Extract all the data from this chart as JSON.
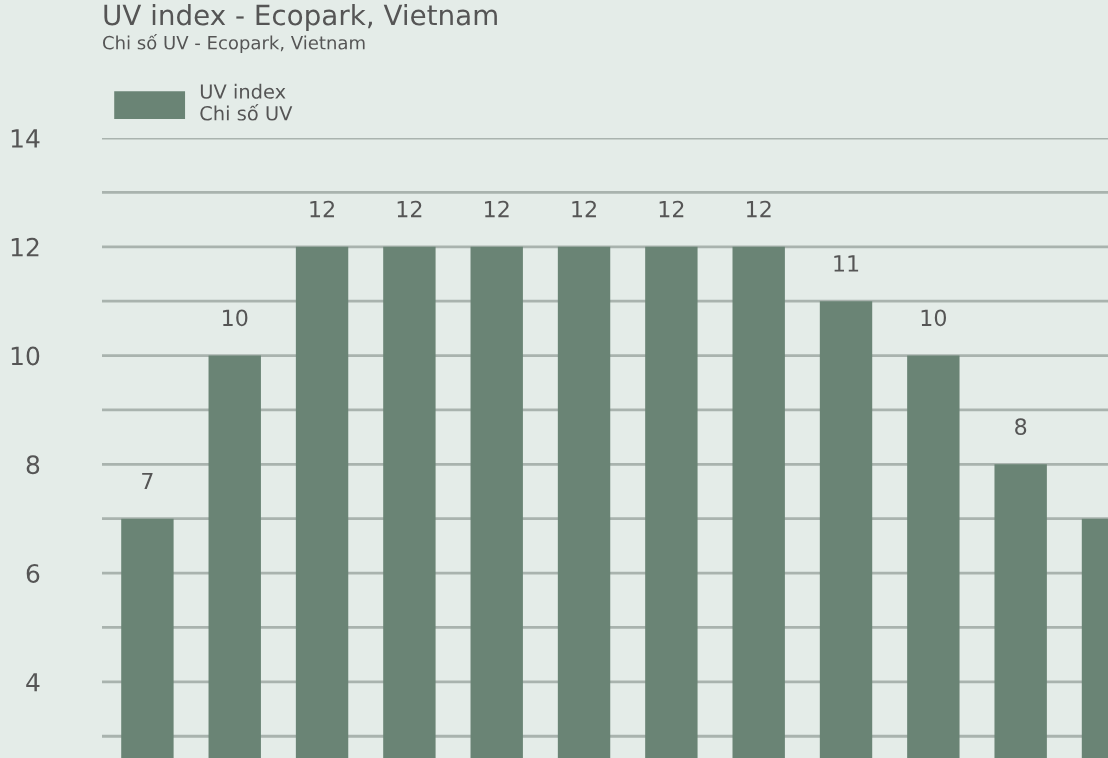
{
  "chart_data": {
    "type": "bar",
    "title": "UV index - Ecopark, Vietnam",
    "subtitle": "Chi số UV - Ecopark, Vietnam",
    "categories": [
      null,
      null,
      null,
      null,
      null,
      null,
      null,
      null,
      null,
      null,
      null,
      null
    ],
    "series": [
      {
        "name": "UV index\nChi số UV",
        "color": "#6a8475",
        "values": [
          7,
          10,
          12,
          12,
          12,
          12,
          12,
          12,
          11,
          10,
          8,
          7
        ]
      }
    ],
    "value_labels": [
      "7",
      "10",
      "12",
      "12",
      "12",
      "12",
      "12",
      "12",
      "11",
      "10",
      "8",
      null
    ],
    "ylim": [
      2.6,
      14
    ],
    "yticks": [
      {
        "value": 3,
        "label": null
      },
      4,
      {
        "value": 5,
        "label": null
      },
      6,
      {
        "value": 7,
        "label": null
      },
      8,
      {
        "value": 9,
        "label": null
      },
      10,
      {
        "value": 11,
        "label": null
      },
      12,
      {
        "value": 13,
        "label": null
      },
      14
    ],
    "tick_labels": "y",
    "grid": "y",
    "legend": "top left"
  }
}
